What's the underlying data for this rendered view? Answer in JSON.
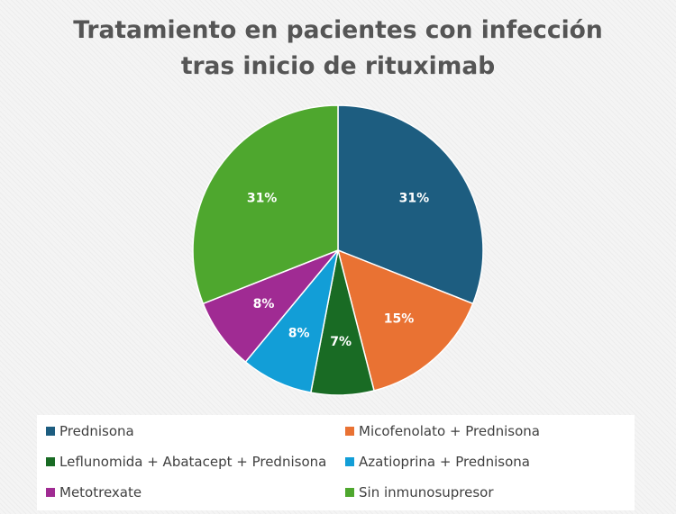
{
  "title_lines": [
    "Tratamiento en pacientes con infección",
    "tras inicio de rituximab"
  ],
  "chart_data": {
    "type": "pie",
    "title": "Tratamiento en pacientes con infección tras inicio de rituximab",
    "legend_position": "bottom",
    "slices": [
      {
        "label": "Prednisona",
        "value": 31,
        "display": "31%",
        "color": "#1d5d80"
      },
      {
        "label": "Micofenolato + Prednisona",
        "value": 15,
        "display": "15%",
        "color": "#e97233"
      },
      {
        "label": "Leflunomida + Abatacept + Prednisona",
        "value": 7,
        "display": "7%",
        "color": "#196b24"
      },
      {
        "label": "Azatioprina + Prednisona",
        "value": 8,
        "display": "8%",
        "color": "#129ed7"
      },
      {
        "label": "Metotrexate",
        "value": 8,
        "display": "8%",
        "color": "#a02b93"
      },
      {
        "label": "Sin inmunosupresor",
        "value": 31,
        "display": "31%",
        "color": "#4ea72e"
      }
    ]
  }
}
